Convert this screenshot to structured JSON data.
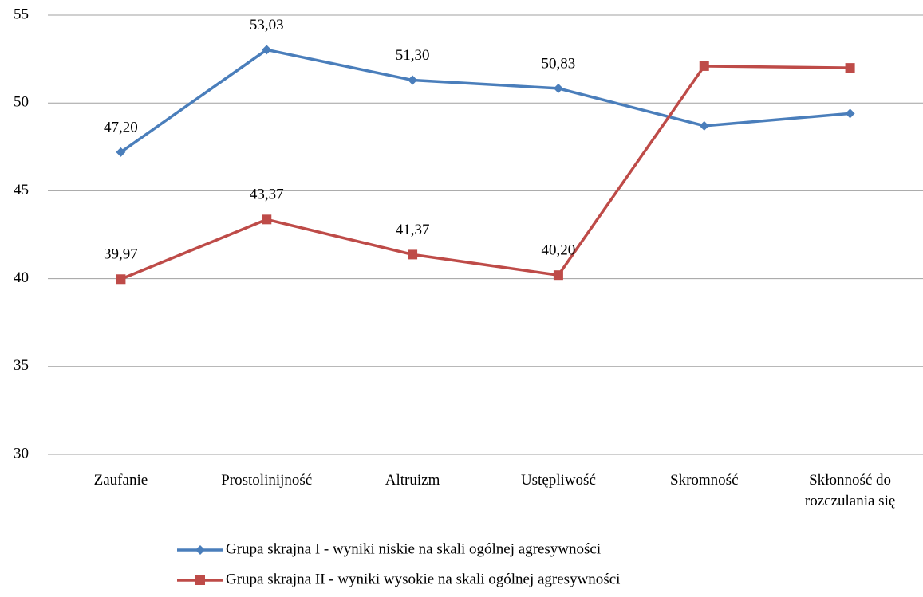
{
  "chart_data": {
    "type": "line",
    "categories": [
      "Zaufanie",
      "Prostolinijność",
      "Altruizm",
      "Ustępliwość",
      "Skromność",
      "Skłonność do rozczulania się"
    ],
    "series": [
      {
        "name": "Grupa skrajna I - wyniki niskie na skali ogólnej agresywności",
        "color": "#4a7ebb",
        "marker": "diamond",
        "values": [
          47.2,
          53.03,
          51.3,
          50.83,
          48.7,
          49.4
        ],
        "value_labels": [
          "47,20",
          "53,03",
          "51,30",
          "50,83",
          null,
          null
        ]
      },
      {
        "name": "Grupa skrajna II - wyniki wysokie na skali ogólnej agresywności",
        "color": "#be4b48",
        "marker": "square",
        "values": [
          39.97,
          43.37,
          41.37,
          40.2,
          52.1,
          52.0
        ],
        "value_labels": [
          "39,97",
          "43,37",
          "41,37",
          "40,20",
          null,
          null
        ]
      }
    ],
    "ylim": [
      30,
      55
    ],
    "yticks": [
      30,
      35,
      40,
      45,
      50,
      55
    ],
    "grid": true,
    "legend": "bottom"
  }
}
